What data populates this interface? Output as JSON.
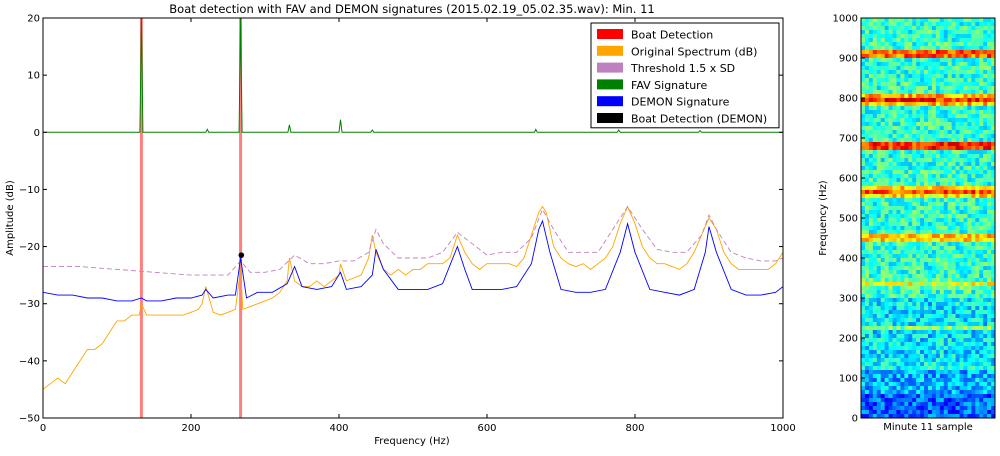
{
  "chart_data": [
    {
      "type": "line",
      "title": "Boat detection with FAV and DEMON signatures (2015.02.19_05.02.35.wav): Min. 11",
      "xlabel": "Frequency (Hz)",
      "ylabel": "Amplitude (dB)",
      "xlim": [
        0,
        1000
      ],
      "ylim": [
        -50,
        20
      ],
      "xticks": [
        "0",
        "200",
        "400",
        "600",
        "800",
        "1000"
      ],
      "yticks": [
        "20",
        "10",
        "0",
        "−10",
        "−20",
        "−30",
        "−40",
        "−50"
      ],
      "grid": false,
      "legend_position": "top-right",
      "legend": [
        {
          "label": "Boat Detection",
          "color": "#ff0000"
        },
        {
          "label": "Original Spectrum (dB)",
          "color": "#ffa500"
        },
        {
          "label": "Threshold 1.5 x SD",
          "color": "#bf80bf"
        },
        {
          "label": "FAV Signature",
          "color": "#008000"
        },
        {
          "label": "DEMON Signature",
          "color": "#0000ff"
        },
        {
          "label": "Boat Detection (DEMON)",
          "color": "#000000"
        }
      ],
      "boat_detection_bands": [
        {
          "x_start": 131,
          "x_end": 135
        },
        {
          "x_start": 265,
          "x_end": 269
        }
      ],
      "boat_detection_demon_points": [
        {
          "x": 268,
          "y": -21.5
        }
      ],
      "fav_peaks": [
        {
          "x": 133,
          "y": 20
        },
        {
          "x": 222,
          "y": 0.5
        },
        {
          "x": 267,
          "y": 20
        },
        {
          "x": 333,
          "y": 1.3
        },
        {
          "x": 402,
          "y": 2.2
        },
        {
          "x": 445,
          "y": 0.4
        },
        {
          "x": 666,
          "y": 0.5
        },
        {
          "x": 778,
          "y": 0.4
        },
        {
          "x": 888,
          "y": 0.3
        }
      ],
      "series": [
        {
          "name": "Original Spectrum (dB)",
          "x": [
            0,
            10,
            20,
            30,
            40,
            50,
            60,
            70,
            80,
            90,
            100,
            110,
            120,
            130,
            133,
            140,
            150,
            160,
            170,
            180,
            190,
            200,
            210,
            215,
            220,
            230,
            240,
            250,
            260,
            267,
            270,
            280,
            290,
            300,
            310,
            320,
            330,
            333,
            340,
            350,
            360,
            370,
            380,
            390,
            400,
            402,
            410,
            420,
            430,
            440,
            445,
            450,
            460,
            470,
            480,
            490,
            500,
            510,
            520,
            530,
            540,
            550,
            560,
            570,
            580,
            590,
            600,
            610,
            620,
            630,
            640,
            650,
            660,
            670,
            675,
            680,
            690,
            700,
            710,
            720,
            730,
            740,
            750,
            760,
            770,
            780,
            790,
            800,
            810,
            820,
            830,
            840,
            850,
            860,
            870,
            880,
            890,
            900,
            910,
            920,
            930,
            940,
            950,
            960,
            970,
            980,
            990,
            1000
          ],
          "y": [
            -45,
            -44,
            -43,
            -44,
            -42,
            -40,
            -38,
            -38,
            -37,
            -35,
            -33,
            -33,
            -32,
            -32,
            -30,
            -32,
            -32,
            -32,
            -32,
            -32,
            -32,
            -31.5,
            -31,
            -30,
            -27,
            -31.5,
            -32,
            -31.5,
            -31,
            -24,
            -31,
            -30.5,
            -30,
            -29.5,
            -29,
            -28,
            -26,
            -22,
            -26,
            -27,
            -27,
            -26,
            -27,
            -26,
            -25,
            -23,
            -26,
            -25.5,
            -25,
            -22,
            -18,
            -21,
            -24,
            -25,
            -24,
            -25,
            -24,
            -24,
            -23,
            -23,
            -23,
            -22,
            -18,
            -21,
            -23,
            -24,
            -23,
            -23,
            -23,
            -23,
            -23.5,
            -22,
            -18,
            -14,
            -13,
            -14,
            -20,
            -22,
            -23,
            -23.5,
            -23,
            -24,
            -23,
            -22,
            -20,
            -16,
            -13,
            -16,
            -20,
            -22,
            -23,
            -23,
            -23.5,
            -24,
            -23,
            -21,
            -18,
            -15,
            -17,
            -21,
            -23,
            -24,
            -24,
            -24,
            -24,
            -24,
            -23,
            -21
          ]
        },
        {
          "name": "Threshold 1.5 x SD",
          "x": [
            0,
            50,
            100,
            150,
            200,
            250,
            267,
            280,
            300,
            320,
            340,
            360,
            380,
            400,
            420,
            440,
            450,
            460,
            480,
            500,
            520,
            540,
            560,
            580,
            600,
            620,
            640,
            660,
            675,
            690,
            710,
            730,
            750,
            770,
            790,
            810,
            830,
            850,
            870,
            890,
            900,
            910,
            930,
            950,
            970,
            990,
            1000
          ],
          "y": [
            -23.5,
            -23.5,
            -24,
            -24.5,
            -25,
            -25,
            -22.5,
            -24.5,
            -24.5,
            -24,
            -21.5,
            -23,
            -23,
            -22.5,
            -22.5,
            -21,
            -17,
            -19.5,
            -22,
            -22,
            -22,
            -21,
            -17.5,
            -19.5,
            -21.5,
            -21,
            -21,
            -18.5,
            -13.5,
            -17,
            -21,
            -21,
            -21,
            -17,
            -13,
            -17,
            -20.5,
            -21,
            -21,
            -18,
            -14.5,
            -17,
            -21,
            -22,
            -22.5,
            -22.5,
            -22
          ]
        },
        {
          "name": "DEMON Signature",
          "x": [
            0,
            20,
            40,
            60,
            80,
            100,
            120,
            133,
            140,
            160,
            180,
            200,
            215,
            220,
            230,
            250,
            260,
            267,
            275,
            290,
            310,
            330,
            340,
            350,
            370,
            390,
            402,
            410,
            430,
            445,
            450,
            460,
            480,
            500,
            520,
            540,
            560,
            570,
            580,
            600,
            620,
            640,
            660,
            670,
            675,
            685,
            700,
            720,
            740,
            760,
            780,
            790,
            800,
            820,
            840,
            860,
            880,
            895,
            900,
            910,
            930,
            950,
            970,
            990,
            1000
          ],
          "y": [
            -28,
            -28.5,
            -28.5,
            -29,
            -29,
            -29.5,
            -29.5,
            -29,
            -29.5,
            -29.5,
            -29,
            -29,
            -28.5,
            -27.5,
            -29,
            -28.5,
            -28.5,
            -22,
            -29,
            -28,
            -28,
            -26.5,
            -23.5,
            -27,
            -27.5,
            -27,
            -24.5,
            -27.5,
            -27,
            -25,
            -20.5,
            -24,
            -27.5,
            -27.5,
            -27.5,
            -26.5,
            -20,
            -24,
            -27.5,
            -27.5,
            -27.5,
            -27,
            -23,
            -17,
            -15.5,
            -21,
            -27.5,
            -28,
            -28,
            -27.5,
            -21,
            -16,
            -21,
            -27.5,
            -28,
            -28.5,
            -27.5,
            -21,
            -16.5,
            -21,
            -27.5,
            -28.5,
            -28.5,
            -28,
            -27
          ]
        },
        {
          "name": "FAV Signature",
          "x": [
            0,
            131,
            132,
            133,
            134,
            135,
            220,
            222,
            224,
            265,
            266,
            267,
            268,
            269,
            331,
            333,
            335,
            400,
            402,
            404,
            443,
            445,
            447,
            664,
            666,
            668,
            776,
            778,
            780,
            886,
            888,
            890,
            1000
          ],
          "y": [
            0,
            0,
            10,
            20,
            10,
            0,
            0,
            0.5,
            0,
            0,
            10,
            20,
            10,
            0,
            0,
            1.3,
            0,
            0,
            2.2,
            0,
            0,
            0.4,
            0,
            0,
            0.5,
            0,
            0,
            0.4,
            0,
            0,
            0.3,
            0,
            0
          ]
        }
      ]
    },
    {
      "type": "heatmap",
      "xlabel": "Minute 11 sample",
      "ylabel": "Frequency (Hz)",
      "ylim": [
        0,
        1000
      ],
      "yticks": [
        "0",
        "100",
        "200",
        "300",
        "400",
        "500",
        "600",
        "700",
        "800",
        "900",
        "1000"
      ],
      "colormap": "jet",
      "bands": [
        {
          "freq": 910,
          "intensity": 0.85
        },
        {
          "freq": 795,
          "intensity": 0.85
        },
        {
          "freq": 680,
          "intensity": 0.9
        },
        {
          "freq": 565,
          "intensity": 0.8
        },
        {
          "freq": 450,
          "intensity": 0.75
        },
        {
          "freq": 335,
          "intensity": 0.6
        },
        {
          "freq": 225,
          "intensity": 0.5
        },
        {
          "freq": 130,
          "intensity": 0.45
        }
      ]
    }
  ]
}
